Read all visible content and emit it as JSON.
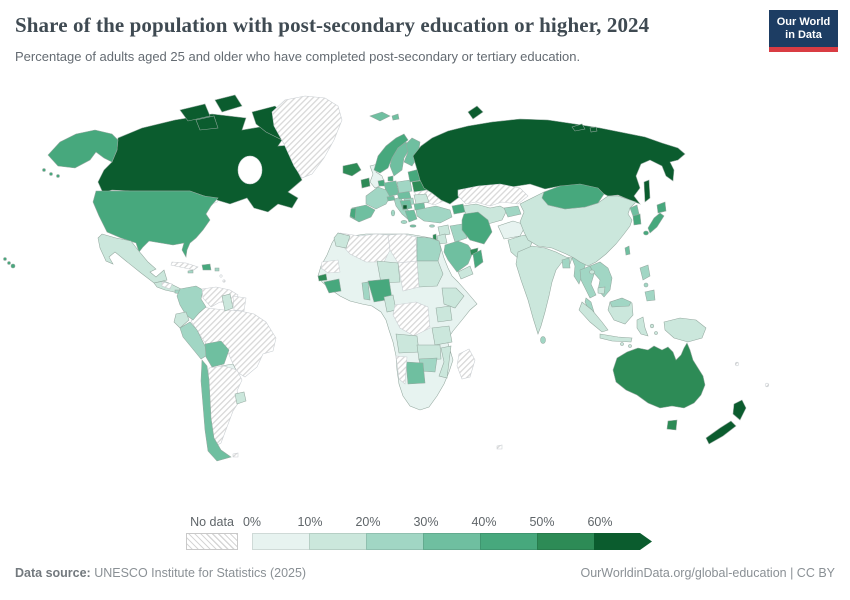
{
  "header": {
    "title": "Share of the population with post-secondary education or higher, 2024",
    "subtitle": "Percentage of adults aged 25 and older who have completed post-secondary or tertiary education.",
    "logo_line1": "Our World",
    "logo_line2": "in Data",
    "logo_bg_color": "#1d3d63",
    "logo_accent_color": "#d93c43"
  },
  "legend": {
    "no_data_label": "No data",
    "ticks": [
      "0%",
      "10%",
      "20%",
      "30%",
      "40%",
      "50%",
      "60%"
    ]
  },
  "footer": {
    "source_label": "Data source:",
    "source_text": " UNESCO Institute for Statistics (2025)",
    "right_text": "OurWorldinData.org/global-education | CC BY"
  },
  "chart_data": {
    "type": "choropleth",
    "title": "Share of the population with post-secondary education or higher, 2024",
    "unit": "% of adults aged 25+",
    "year": 2024,
    "no_data_label": "No data",
    "bins": [
      {
        "label": "0-10%",
        "color": "#e7f3f0"
      },
      {
        "label": "10-20%",
        "color": "#cbe7dc"
      },
      {
        "label": "20-30%",
        "color": "#a1d6c4"
      },
      {
        "label": "30-40%",
        "color": "#6fbfa0"
      },
      {
        "label": "40-50%",
        "color": "#47a87d"
      },
      {
        "label": "50-60%",
        "color": "#2d8b56"
      },
      {
        "label": "60%+",
        "color": "#0b5c2e"
      }
    ],
    "regions": [
      {
        "id": "canada",
        "name": "Canada",
        "bin": 6
      },
      {
        "id": "greenland",
        "name": "Greenland",
        "bin": -1
      },
      {
        "id": "alaska",
        "name": "United States (Alaska)",
        "bin": 4
      },
      {
        "id": "usa",
        "name": "United States",
        "bin": 4
      },
      {
        "id": "hawaii",
        "name": "United States (Hawaii)",
        "bin": 4
      },
      {
        "id": "mexico",
        "name": "Mexico",
        "bin": 1
      },
      {
        "id": "central-america",
        "name": "Central America",
        "bin": 1
      },
      {
        "id": "honduras",
        "name": "Honduras",
        "bin": -1
      },
      {
        "id": "panama",
        "name": "Panama",
        "bin": 2
      },
      {
        "id": "cuba",
        "name": "Cuba",
        "bin": -1
      },
      {
        "id": "dominican-republic",
        "name": "Dominican Republic",
        "bin": 4
      },
      {
        "id": "jamaica",
        "name": "Jamaica",
        "bin": 2
      },
      {
        "id": "puerto-rico",
        "name": "Puerto Rico",
        "bin": 2
      },
      {
        "id": "lesser-antilles",
        "name": "Lesser Antilles",
        "bin": -1
      },
      {
        "id": "colombia",
        "name": "Colombia",
        "bin": 2
      },
      {
        "id": "venezuela",
        "name": "Venezuela",
        "bin": -1
      },
      {
        "id": "guyana",
        "name": "Guyana",
        "bin": 1
      },
      {
        "id": "suriname",
        "name": "Suriname",
        "bin": -1
      },
      {
        "id": "ecuador",
        "name": "Ecuador",
        "bin": 1
      },
      {
        "id": "peru",
        "name": "Peru",
        "bin": 2
      },
      {
        "id": "bolivia",
        "name": "Bolivia",
        "bin": 3
      },
      {
        "id": "chile",
        "name": "Chile",
        "bin": 3
      },
      {
        "id": "argentina",
        "name": "Argentina",
        "bin": -1
      },
      {
        "id": "paraguay",
        "name": "Paraguay",
        "bin": 0
      },
      {
        "id": "uruguay",
        "name": "Uruguay",
        "bin": 1
      },
      {
        "id": "brazil",
        "name": "Brazil",
        "bin": -1
      },
      {
        "id": "falkland-islands",
        "name": "Falkland Islands",
        "bin": -1
      },
      {
        "id": "iceland",
        "name": "Iceland",
        "bin": 5
      },
      {
        "id": "ireland",
        "name": "Ireland",
        "bin": 5
      },
      {
        "id": "uk",
        "name": "United Kingdom",
        "bin": 0
      },
      {
        "id": "norway",
        "name": "Norway",
        "bin": 4
      },
      {
        "id": "svalbard",
        "name": "Svalbard",
        "bin": 3
      },
      {
        "id": "sweden",
        "name": "Sweden",
        "bin": 3
      },
      {
        "id": "finland",
        "name": "Finland",
        "bin": 3
      },
      {
        "id": "denmark",
        "name": "Denmark",
        "bin": 4
      },
      {
        "id": "benelux",
        "name": "Belgium and Netherlands",
        "bin": 4
      },
      {
        "id": "germany",
        "name": "Germany",
        "bin": 3
      },
      {
        "id": "france",
        "name": "France",
        "bin": 2
      },
      {
        "id": "spain",
        "name": "Spain",
        "bin": 3
      },
      {
        "id": "portugal",
        "name": "Portugal",
        "bin": 4
      },
      {
        "id": "italy",
        "name": "Italy",
        "bin": 2
      },
      {
        "id": "switzerland",
        "name": "Switzerland",
        "bin": 3
      },
      {
        "id": "austria-czechia",
        "name": "Austria and Czechia",
        "bin": 3
      },
      {
        "id": "poland",
        "name": "Poland",
        "bin": 2
      },
      {
        "id": "baltics",
        "name": "Baltic states",
        "bin": 4
      },
      {
        "id": "belarus",
        "name": "Belarus",
        "bin": 5
      },
      {
        "id": "ukraine",
        "name": "Ukraine",
        "bin": -1
      },
      {
        "id": "hungary",
        "name": "Hungary",
        "bin": 2
      },
      {
        "id": "romania",
        "name": "Romania",
        "bin": 1
      },
      {
        "id": "balkans",
        "name": "Western Balkans",
        "bin": 3
      },
      {
        "id": "north-macedonia",
        "name": "North Macedonia",
        "bin": 6
      },
      {
        "id": "bulgaria",
        "name": "Bulgaria",
        "bin": 3
      },
      {
        "id": "greece",
        "name": "Greece",
        "bin": 3
      },
      {
        "id": "cyprus",
        "name": "Cyprus",
        "bin": 2
      },
      {
        "id": "turkey",
        "name": "Turkey",
        "bin": 2
      },
      {
        "id": "caucasus",
        "name": "Caucasus",
        "bin": 4
      },
      {
        "id": "russia",
        "name": "Russia",
        "bin": 6
      },
      {
        "id": "kazakhstan",
        "name": "Kazakhstan",
        "bin": -1
      },
      {
        "id": "central-asia",
        "name": "Turkmenistan and Uzbekistan",
        "bin": 1
      },
      {
        "id": "kyrgyzstan-tajikistan",
        "name": "Kyrgyzstan and Tajikistan",
        "bin": 2
      },
      {
        "id": "syria",
        "name": "Syria",
        "bin": 1
      },
      {
        "id": "israel",
        "name": "Israel",
        "bin": 5
      },
      {
        "id": "jordan",
        "name": "Jordan",
        "bin": 1
      },
      {
        "id": "iraq",
        "name": "Iraq",
        "bin": 2
      },
      {
        "id": "iran",
        "name": "Iran",
        "bin": 4
      },
      {
        "id": "saudi-arabia",
        "name": "Saudi Arabia",
        "bin": 3
      },
      {
        "id": "yemen",
        "name": "Yemen",
        "bin": 1
      },
      {
        "id": "oman",
        "name": "Oman",
        "bin": 4
      },
      {
        "id": "uae",
        "name": "United Arab Emirates",
        "bin": 5
      },
      {
        "id": "afghanistan",
        "name": "Afghanistan",
        "bin": 0
      },
      {
        "id": "pakistan",
        "name": "Pakistan",
        "bin": 1
      },
      {
        "id": "india",
        "name": "India",
        "bin": 1
      },
      {
        "id": "sri-lanka",
        "name": "Sri Lanka",
        "bin": 2
      },
      {
        "id": "bangladesh",
        "name": "Bangladesh",
        "bin": 2
      },
      {
        "id": "myanmar",
        "name": "Myanmar",
        "bin": 2
      },
      {
        "id": "thailand",
        "name": "Thailand",
        "bin": 2
      },
      {
        "id": "laos-vietnam",
        "name": "Laos and Vietnam",
        "bin": 2
      },
      {
        "id": "cambodia",
        "name": "Cambodia",
        "bin": 1
      },
      {
        "id": "malaysia",
        "name": "Malaysia",
        "bin": 2
      },
      {
        "id": "indonesia",
        "name": "Indonesia",
        "bin": 1
      },
      {
        "id": "philippines",
        "name": "Philippines",
        "bin": 2
      },
      {
        "id": "new-guinea",
        "name": "New Guinea",
        "bin": 1
      },
      {
        "id": "china",
        "name": "China",
        "bin": 1
      },
      {
        "id": "mongolia",
        "name": "Mongolia",
        "bin": 4
      },
      {
        "id": "north-korea",
        "name": "North Korea",
        "bin": 3
      },
      {
        "id": "south-korea",
        "name": "South Korea",
        "bin": 4
      },
      {
        "id": "japan",
        "name": "Japan",
        "bin": 4
      },
      {
        "id": "taiwan",
        "name": "Taiwan",
        "bin": 3
      },
      {
        "id": "australia",
        "name": "Australia",
        "bin": 5
      },
      {
        "id": "new-zealand",
        "name": "New Zealand",
        "bin": 6
      },
      {
        "id": "pacific-islands",
        "name": "Pacific islands",
        "bin": -1
      },
      {
        "id": "kerguelen",
        "name": "Kerguelen",
        "bin": -1
      },
      {
        "id": "africa-other",
        "name": "Other African countries",
        "bin": 0
      },
      {
        "id": "morocco",
        "name": "Morocco",
        "bin": 1
      },
      {
        "id": "algeria",
        "name": "Algeria",
        "bin": -1
      },
      {
        "id": "western-sahara",
        "name": "Western Sahara",
        "bin": -1
      },
      {
        "id": "libya",
        "name": "Libya",
        "bin": -1
      },
      {
        "id": "egypt",
        "name": "Egypt",
        "bin": 2
      },
      {
        "id": "sudan",
        "name": "Sudan",
        "bin": 1
      },
      {
        "id": "chad",
        "name": "Chad",
        "bin": -1
      },
      {
        "id": "niger",
        "name": "Niger",
        "bin": 1
      },
      {
        "id": "nigeria",
        "name": "Nigeria",
        "bin": 4
      },
      {
        "id": "benin",
        "name": "Benin",
        "bin": 2
      },
      {
        "id": "guinea",
        "name": "Guinea",
        "bin": 4
      },
      {
        "id": "senegal",
        "name": "Senegal",
        "bin": 5
      },
      {
        "id": "cameroon",
        "name": "Cameroon",
        "bin": 1
      },
      {
        "id": "ethiopia",
        "name": "Ethiopia",
        "bin": 1
      },
      {
        "id": "kenya-uganda",
        "name": "Kenya and Uganda",
        "bin": 1
      },
      {
        "id": "drc",
        "name": "Democratic Republic of Congo",
        "bin": -1
      },
      {
        "id": "tanzania",
        "name": "Tanzania",
        "bin": 1
      },
      {
        "id": "angola",
        "name": "Angola",
        "bin": 1
      },
      {
        "id": "zambia",
        "name": "Zambia",
        "bin": 1
      },
      {
        "id": "mozambique",
        "name": "Mozambique",
        "bin": 1
      },
      {
        "id": "zimbabwe",
        "name": "Zimbabwe",
        "bin": 2
      },
      {
        "id": "botswana",
        "name": "Botswana",
        "bin": 3
      },
      {
        "id": "namibia",
        "name": "Namibia",
        "bin": -1
      },
      {
        "id": "madagascar",
        "name": "Madagascar",
        "bin": -1
      }
    ]
  }
}
